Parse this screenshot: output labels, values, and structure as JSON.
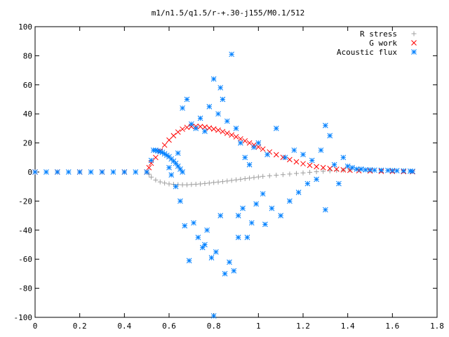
{
  "chart_data": {
    "type": "scatter",
    "title": "m1/n1.5/q1.5/r-+.30-j155/M0.1/512",
    "xlabel": "",
    "ylabel": "",
    "xlim": [
      0,
      1.8
    ],
    "ylim": [
      -100,
      100
    ],
    "x_ticks": [
      0,
      0.2,
      0.4,
      0.6,
      0.8,
      1,
      1.2,
      1.4,
      1.6,
      1.8
    ],
    "x_tick_labels": [
      "0",
      "0.2",
      "0.4",
      "0.6",
      "0.8",
      "1",
      "1.2",
      "1.4",
      "1.6",
      "1.8"
    ],
    "y_ticks": [
      -100,
      -80,
      -60,
      -40,
      -20,
      0,
      20,
      40,
      60,
      80,
      100
    ],
    "y_tick_labels": [
      "-100",
      "-80",
      "-60",
      "-40",
      "-20",
      "0",
      "20",
      "40",
      "60",
      "80",
      "100"
    ],
    "grid": false,
    "legend_position": "top-right",
    "series": [
      {
        "name": "R stress",
        "color": "#a0a0a0",
        "marker": "plus",
        "points": [
          [
            0.0,
            0
          ],
          [
            0.1,
            0
          ],
          [
            0.2,
            0
          ],
          [
            0.3,
            0
          ],
          [
            0.4,
            0
          ],
          [
            0.5,
            0
          ],
          [
            0.51,
            -1.5
          ],
          [
            0.52,
            -3.5
          ],
          [
            0.54,
            -5.5
          ],
          [
            0.56,
            -6.8
          ],
          [
            0.58,
            -7.6
          ],
          [
            0.6,
            -8.2
          ],
          [
            0.62,
            -8.5
          ],
          [
            0.64,
            -8.7
          ],
          [
            0.66,
            -8.8
          ],
          [
            0.68,
            -8.8
          ],
          [
            0.7,
            -8.6
          ],
          [
            0.72,
            -8.4
          ],
          [
            0.74,
            -8.2
          ],
          [
            0.76,
            -7.9
          ],
          [
            0.78,
            -7.6
          ],
          [
            0.8,
            -7.2
          ],
          [
            0.82,
            -6.9
          ],
          [
            0.84,
            -6.6
          ],
          [
            0.86,
            -6.2
          ],
          [
            0.88,
            -5.8
          ],
          [
            0.9,
            -5.4
          ],
          [
            0.92,
            -5.0
          ],
          [
            0.94,
            -4.6
          ],
          [
            0.96,
            -4.2
          ],
          [
            0.98,
            -3.8
          ],
          [
            1.0,
            -3.4
          ],
          [
            1.02,
            -3.0
          ],
          [
            1.05,
            -2.6
          ],
          [
            1.08,
            -2.2
          ],
          [
            1.11,
            -1.8
          ],
          [
            1.14,
            -1.4
          ],
          [
            1.17,
            -1.0
          ],
          [
            1.2,
            -0.6
          ],
          [
            1.23,
            -0.2
          ],
          [
            1.26,
            0.2
          ],
          [
            1.29,
            0.5
          ],
          [
            1.32,
            0.8
          ],
          [
            1.35,
            1.1
          ],
          [
            1.38,
            1.3
          ],
          [
            1.41,
            1.4
          ],
          [
            1.45,
            1.4
          ],
          [
            1.5,
            1.3
          ],
          [
            1.55,
            1.1
          ],
          [
            1.6,
            0.9
          ],
          [
            1.65,
            0.7
          ],
          [
            1.69,
            0.5
          ]
        ]
      },
      {
        "name": "G work",
        "color": "#ff0000",
        "marker": "cross",
        "points": [
          [
            0.0,
            0
          ],
          [
            0.1,
            0
          ],
          [
            0.2,
            0
          ],
          [
            0.3,
            0
          ],
          [
            0.4,
            0
          ],
          [
            0.5,
            0
          ],
          [
            0.51,
            3
          ],
          [
            0.52,
            6
          ],
          [
            0.54,
            10
          ],
          [
            0.56,
            14.5
          ],
          [
            0.58,
            18.5
          ],
          [
            0.6,
            22
          ],
          [
            0.62,
            25
          ],
          [
            0.64,
            27.5
          ],
          [
            0.66,
            29.5
          ],
          [
            0.68,
            30.7
          ],
          [
            0.7,
            31.3
          ],
          [
            0.72,
            31.5
          ],
          [
            0.74,
            31.3
          ],
          [
            0.76,
            30.9
          ],
          [
            0.78,
            30.3
          ],
          [
            0.8,
            29.6
          ],
          [
            0.82,
            28.8
          ],
          [
            0.84,
            27.8
          ],
          [
            0.86,
            26.7
          ],
          [
            0.88,
            25.5
          ],
          [
            0.9,
            24.2
          ],
          [
            0.92,
            22.8
          ],
          [
            0.94,
            21.4
          ],
          [
            0.96,
            20.0
          ],
          [
            0.98,
            18.6
          ],
          [
            1.0,
            17.2
          ],
          [
            1.02,
            15.8
          ],
          [
            1.05,
            13.8
          ],
          [
            1.08,
            11.9
          ],
          [
            1.11,
            10.1
          ],
          [
            1.14,
            8.5
          ],
          [
            1.17,
            7.0
          ],
          [
            1.2,
            5.7
          ],
          [
            1.23,
            4.6
          ],
          [
            1.26,
            3.7
          ],
          [
            1.29,
            3.0
          ],
          [
            1.32,
            2.4
          ],
          [
            1.35,
            1.9
          ],
          [
            1.38,
            1.5
          ],
          [
            1.41,
            1.2
          ],
          [
            1.45,
            0.9
          ],
          [
            1.5,
            0.7
          ],
          [
            1.55,
            0.5
          ],
          [
            1.6,
            0.4
          ],
          [
            1.65,
            0.3
          ],
          [
            1.69,
            0.2
          ]
        ]
      },
      {
        "name": "Acoustic flux",
        "color": "#0080ff",
        "marker": "star",
        "points": [
          [
            0.0,
            0
          ],
          [
            0.05,
            0
          ],
          [
            0.1,
            0
          ],
          [
            0.15,
            0
          ],
          [
            0.2,
            0
          ],
          [
            0.25,
            0
          ],
          [
            0.3,
            0
          ],
          [
            0.35,
            0
          ],
          [
            0.4,
            0
          ],
          [
            0.45,
            0
          ],
          [
            0.5,
            0
          ],
          [
            0.52,
            8
          ],
          [
            0.53,
            15
          ],
          [
            0.54,
            15
          ],
          [
            0.55,
            14.5
          ],
          [
            0.56,
            14
          ],
          [
            0.57,
            13.5
          ],
          [
            0.58,
            12.5
          ],
          [
            0.59,
            11.5
          ],
          [
            0.6,
            10.5
          ],
          [
            0.61,
            9
          ],
          [
            0.62,
            7.5
          ],
          [
            0.63,
            6
          ],
          [
            0.64,
            4
          ],
          [
            0.65,
            2
          ],
          [
            0.66,
            0
          ],
          [
            0.6,
            3
          ],
          [
            0.61,
            -2
          ],
          [
            0.63,
            -10
          ],
          [
            0.64,
            13
          ],
          [
            0.65,
            -20
          ],
          [
            0.66,
            44
          ],
          [
            0.67,
            -37
          ],
          [
            0.68,
            50
          ],
          [
            0.69,
            -61
          ],
          [
            0.7,
            33
          ],
          [
            0.71,
            -35
          ],
          [
            0.72,
            30
          ],
          [
            0.73,
            -45
          ],
          [
            0.74,
            37
          ],
          [
            0.75,
            -52
          ],
          [
            0.76,
            28
          ],
          [
            0.77,
            -40
          ],
          [
            0.78,
            45
          ],
          [
            0.79,
            -59
          ],
          [
            0.8,
            64
          ],
          [
            0.81,
            -55
          ],
          [
            0.82,
            40
          ],
          [
            0.83,
            -30
          ],
          [
            0.84,
            50
          ],
          [
            0.85,
            -70
          ],
          [
            0.86,
            35
          ],
          [
            0.87,
            -62
          ],
          [
            0.88,
            81
          ],
          [
            0.89,
            -68
          ],
          [
            0.9,
            30
          ],
          [
            0.91,
            -30
          ],
          [
            0.92,
            20
          ],
          [
            0.93,
            -25
          ],
          [
            0.94,
            10
          ],
          [
            0.95,
            -45
          ],
          [
            0.96,
            5
          ],
          [
            0.97,
            -35
          ],
          [
            0.98,
            17
          ],
          [
            0.99,
            -22
          ],
          [
            1.0,
            20
          ],
          [
            1.02,
            -15
          ],
          [
            1.04,
            12
          ],
          [
            1.06,
            -25
          ],
          [
            1.08,
            30
          ],
          [
            1.1,
            -30
          ],
          [
            1.12,
            10
          ],
          [
            1.14,
            -20
          ],
          [
            1.16,
            15
          ],
          [
            1.18,
            -14
          ],
          [
            1.2,
            12
          ],
          [
            1.22,
            -8
          ],
          [
            1.24,
            8
          ],
          [
            1.26,
            -5
          ],
          [
            1.28,
            15
          ],
          [
            1.3,
            32
          ],
          [
            1.3,
            -26
          ],
          [
            1.32,
            25
          ],
          [
            1.34,
            5
          ],
          [
            1.36,
            -8
          ],
          [
            1.38,
            10
          ],
          [
            1.4,
            4
          ],
          [
            1.42,
            3
          ],
          [
            1.44,
            2
          ],
          [
            1.46,
            2
          ],
          [
            1.48,
            1.5
          ],
          [
            1.5,
            1.5
          ],
          [
            1.52,
            1.3
          ],
          [
            1.55,
            1.2
          ],
          [
            1.58,
            1.1
          ],
          [
            1.6,
            1.0
          ],
          [
            1.62,
            0.9
          ],
          [
            1.65,
            0.8
          ],
          [
            1.68,
            0.6
          ],
          [
            1.69,
            0.5
          ],
          [
            0.8,
            -99
          ],
          [
            0.83,
            58
          ],
          [
            0.76,
            -50
          ],
          [
            0.91,
            -45
          ],
          [
            1.03,
            -36
          ]
        ]
      }
    ]
  }
}
